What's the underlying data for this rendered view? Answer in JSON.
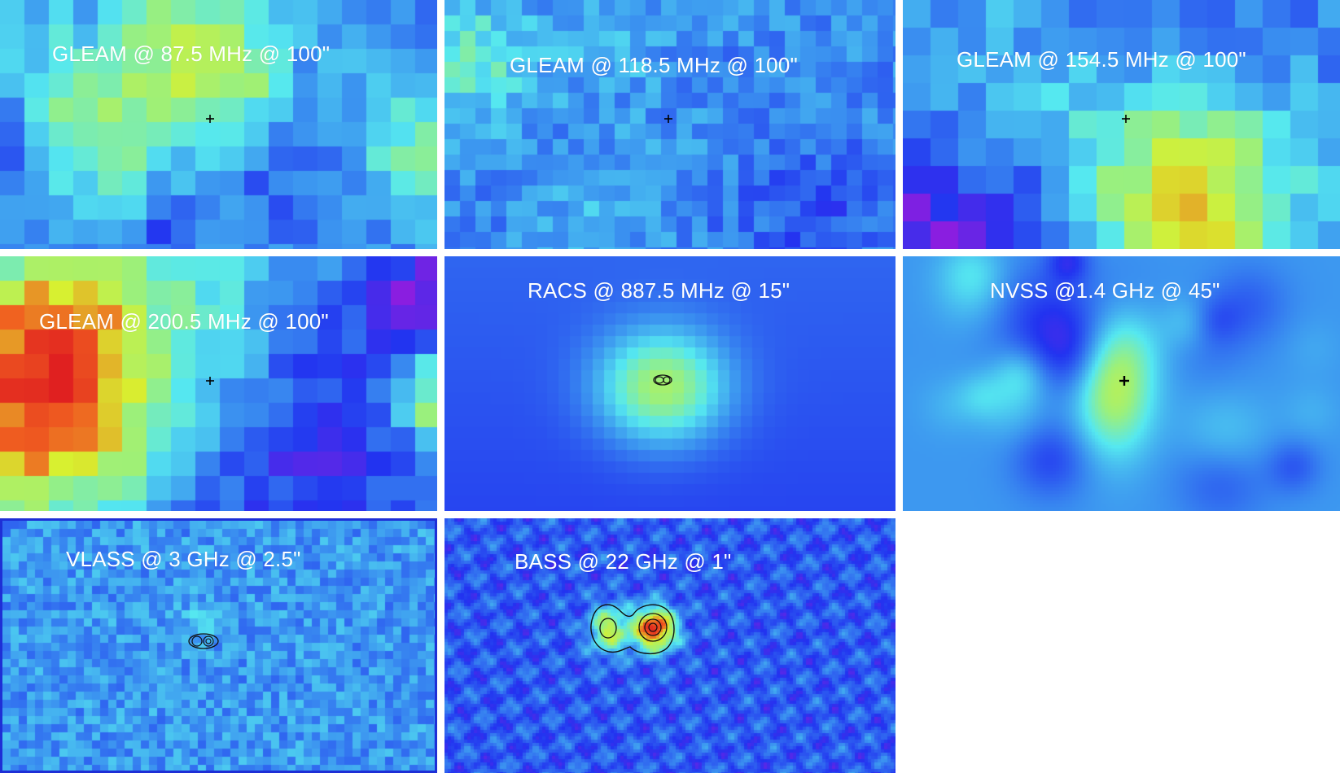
{
  "panels": [
    {
      "label": "GLEAM @ 87.5 MHz @ 100\"",
      "style": "coarse"
    },
    {
      "label": "GLEAM @ 118.5 MHz @ 100\"",
      "style": "coarse"
    },
    {
      "label": "GLEAM @ 154.5 MHz @ 100\"",
      "style": "coarse"
    },
    {
      "label": "GLEAM @ 200.5 MHz @ 100\"",
      "style": "coarse"
    },
    {
      "label": "RACS @ 887.5 MHz @ 15\"",
      "style": "blob"
    },
    {
      "label": "NVSS @1.4 GHz @ 45\"",
      "style": "smooth"
    },
    {
      "label": "VLASS @ 3 GHz @ 2.5\"",
      "style": "noise"
    },
    {
      "label": "BASS @ 22 GHz @ 1\"",
      "style": "ripple"
    }
  ],
  "colors": {
    "colormap": [
      "#8a1ee0",
      "#2233f0",
      "#3a8ff0",
      "#55e8f0",
      "#9cf07a",
      "#d8f030",
      "#f06020",
      "#e02020"
    ],
    "contour": "#111111",
    "marker": "#000000",
    "label_text": "#ffffff"
  }
}
